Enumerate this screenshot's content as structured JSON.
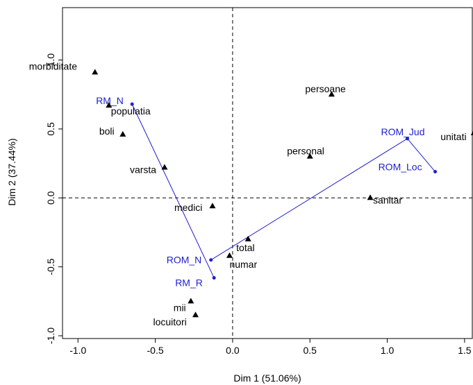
{
  "chart_data": {
    "type": "scatter",
    "xlabel": "Dim 1 (51.06%)",
    "ylabel": "Dim 2 (37.44%)",
    "xlim": [
      -1.1,
      1.55
    ],
    "ylim": [
      -1.02,
      1.38
    ],
    "x_ticks": [
      -1.0,
      -0.5,
      0.0,
      0.5,
      1.0,
      1.5
    ],
    "x_tick_labels": [
      "-1.0",
      "-0.5",
      "0.0",
      "0.5",
      "1.0",
      "1.5"
    ],
    "y_ticks": [
      -1.0,
      -0.5,
      0.0,
      0.5,
      1.0
    ],
    "y_tick_labels": [
      "-1.0",
      "-0.5",
      "0.0",
      "0.5",
      "1.0"
    ],
    "reference_lines": {
      "x": 0,
      "y": 0,
      "style": "dashed"
    },
    "colors": {
      "words": "#000000",
      "categories": "#1f1fcc",
      "path": "#1f1fcc"
    },
    "word_points": [
      {
        "label": "morbiditate",
        "x": -0.89,
        "y": 0.91
      },
      {
        "label": "populatia",
        "x": -0.8,
        "y": 0.67
      },
      {
        "label": "boli",
        "x": -0.71,
        "y": 0.46
      },
      {
        "label": "varsta",
        "x": -0.44,
        "y": 0.22
      },
      {
        "label": "medici",
        "x": -0.13,
        "y": -0.06
      },
      {
        "label": "persoane",
        "x": 0.64,
        "y": 0.75
      },
      {
        "label": "personal",
        "x": 0.5,
        "y": 0.3
      },
      {
        "label": "unitati",
        "x": 1.56,
        "y": 0.47
      },
      {
        "label": "sanitar",
        "x": 0.89,
        "y": 0.0
      },
      {
        "label": "total",
        "x": 0.1,
        "y": -0.3
      },
      {
        "label": "numar",
        "x": -0.02,
        "y": -0.42
      },
      {
        "label": "mii",
        "x": -0.27,
        "y": -0.75
      },
      {
        "label": "locuitori",
        "x": -0.24,
        "y": -0.85
      }
    ],
    "category_points": [
      {
        "label": "RM_N",
        "x": -0.65,
        "y": 0.68
      },
      {
        "label": "RM_R",
        "x": -0.12,
        "y": -0.58
      },
      {
        "label": "ROM_N",
        "x": -0.14,
        "y": -0.45
      },
      {
        "label": "ROM_Jud",
        "x": 1.13,
        "y": 0.43
      },
      {
        "label": "ROM_Loc",
        "x": 1.31,
        "y": 0.19
      }
    ],
    "category_segments": [
      [
        "RM_N",
        "RM_R"
      ],
      [
        "ROM_N",
        "ROM_Jud"
      ],
      [
        "ROM_Jud",
        "ROM_Loc"
      ]
    ]
  }
}
